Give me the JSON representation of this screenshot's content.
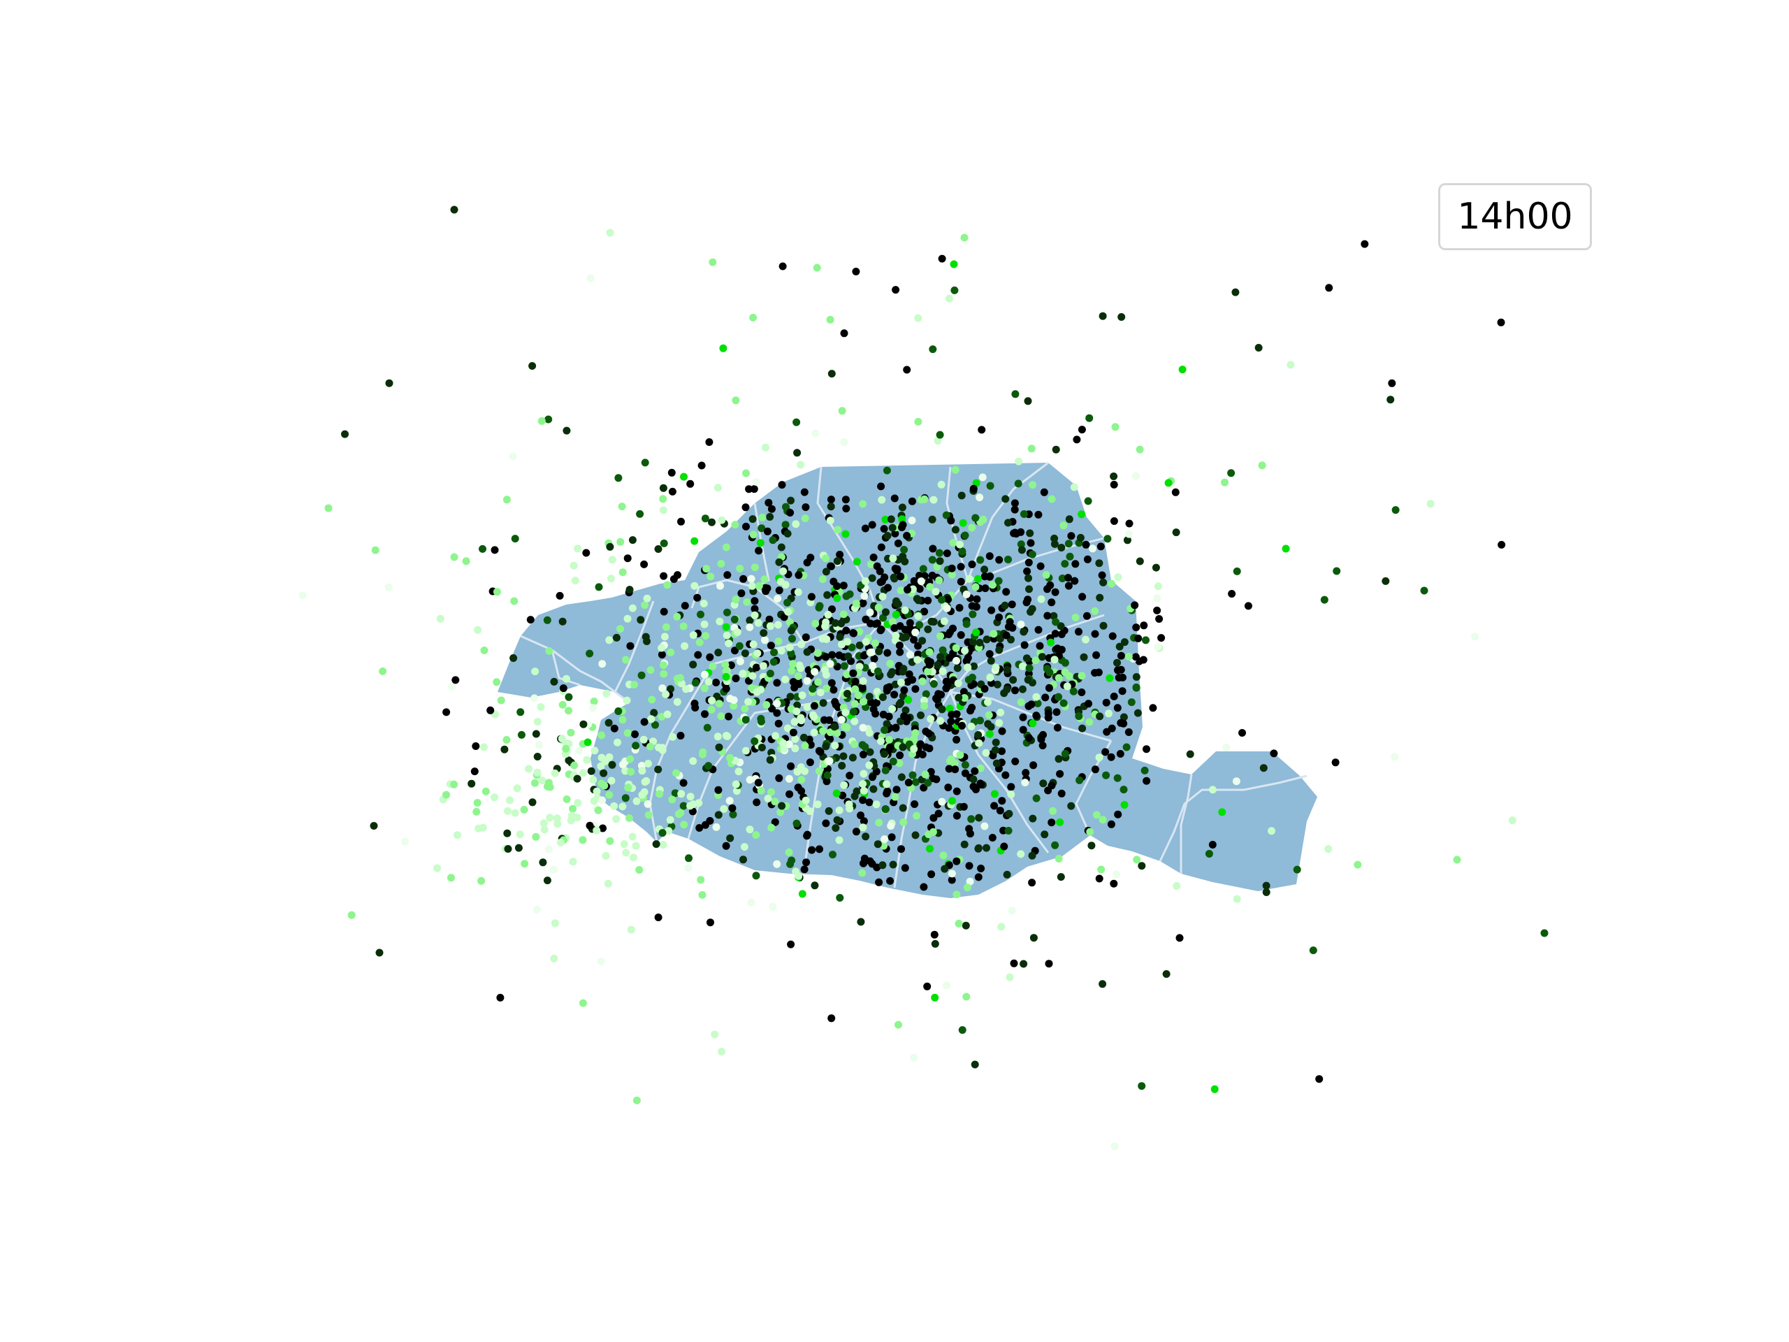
{
  "time_label": "14h00",
  "map": {
    "region_fill": "#8fbad8",
    "border_color": "#d8e6f2",
    "point_palette": [
      "#000000",
      "#0a2e0a",
      "#0b5a0b",
      "#00e000",
      "#8ef58e",
      "#c8fcc8",
      "#ebfdeb"
    ]
  }
}
